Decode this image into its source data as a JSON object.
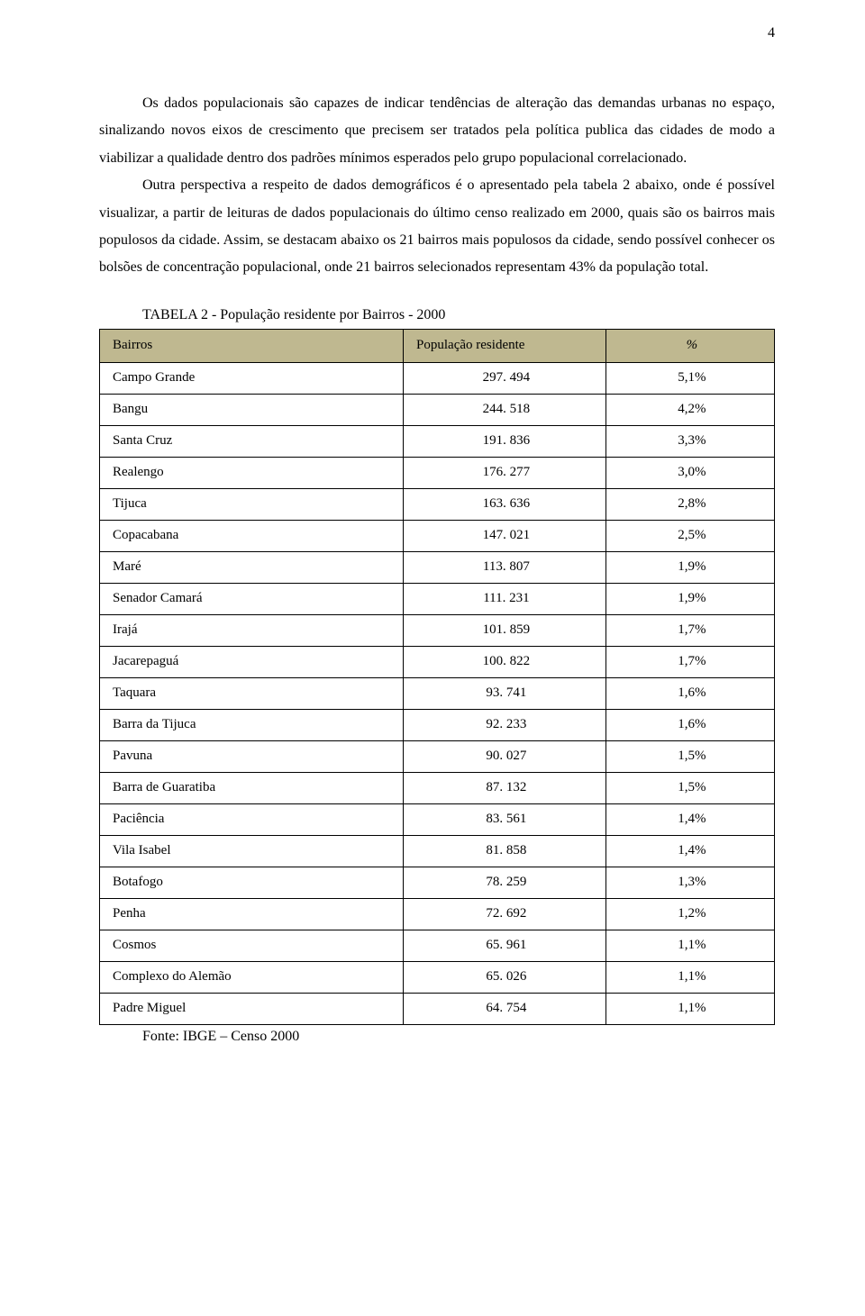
{
  "page_number": "4",
  "paragraphs": {
    "p1": "Os dados populacionais são capazes de indicar tendências de alteração das demandas urbanas no espaço, sinalizando novos eixos de crescimento que precisem ser tratados pela política publica das cidades de modo a viabilizar a qualidade dentro dos padrões mínimos esperados pelo grupo populacional correlacionado.",
    "p2": "Outra perspectiva a respeito de dados demográficos é o apresentado pela tabela 2 abaixo, onde é possível visualizar, a partir de leituras de dados populacionais do último censo realizado em 2000, quais são os bairros mais populosos da cidade. Assim, se destacam abaixo os 21 bairros mais populosos da cidade, sendo possível conhecer os bolsões de concentração populacional, onde 21 bairros selecionados representam 43% da população total."
  },
  "table": {
    "title": "TABELA 2 - População residente por Bairros - 2000",
    "headers": {
      "col1": "Bairros",
      "col2": "População residente",
      "col3": "%"
    },
    "header_bg": "#bfb890",
    "border_color": "#000000",
    "rows": [
      {
        "name": "Campo Grande",
        "pop": "297. 494",
        "pct": "5,1%"
      },
      {
        "name": "Bangu",
        "pop": "244. 518",
        "pct": "4,2%"
      },
      {
        "name": "Santa Cruz",
        "pop": "191. 836",
        "pct": "3,3%"
      },
      {
        "name": "Realengo",
        "pop": "176. 277",
        "pct": "3,0%"
      },
      {
        "name": "Tijuca",
        "pop": "163. 636",
        "pct": "2,8%"
      },
      {
        "name": "Copacabana",
        "pop": "147. 021",
        "pct": "2,5%"
      },
      {
        "name": "Maré",
        "pop": "113. 807",
        "pct": "1,9%"
      },
      {
        "name": "Senador Camará",
        "pop": "111. 231",
        "pct": "1,9%"
      },
      {
        "name": "Irajá",
        "pop": "101. 859",
        "pct": "1,7%"
      },
      {
        "name": "Jacarepaguá",
        "pop": "100. 822",
        "pct": "1,7%"
      },
      {
        "name": "Taquara",
        "pop": "93. 741",
        "pct": "1,6%"
      },
      {
        "name": "Barra da Tijuca",
        "pop": "92. 233",
        "pct": "1,6%"
      },
      {
        "name": "Pavuna",
        "pop": "90. 027",
        "pct": "1,5%"
      },
      {
        "name": "Barra de Guaratiba",
        "pop": "87. 132",
        "pct": "1,5%"
      },
      {
        "name": "Paciência",
        "pop": "83. 561",
        "pct": "1,4%"
      },
      {
        "name": "Vila Isabel",
        "pop": "81. 858",
        "pct": "1,4%"
      },
      {
        "name": "Botafogo",
        "pop": "78. 259",
        "pct": "1,3%"
      },
      {
        "name": "Penha",
        "pop": "72. 692",
        "pct": "1,2%"
      },
      {
        "name": "Cosmos",
        "pop": "65. 961",
        "pct": "1,1%"
      },
      {
        "name": "Complexo do Alemão",
        "pop": "65. 026",
        "pct": "1,1%"
      },
      {
        "name": "Padre Miguel",
        "pop": "64. 754",
        "pct": "1,1%"
      }
    ],
    "source": "Fonte: IBGE – Censo 2000"
  }
}
